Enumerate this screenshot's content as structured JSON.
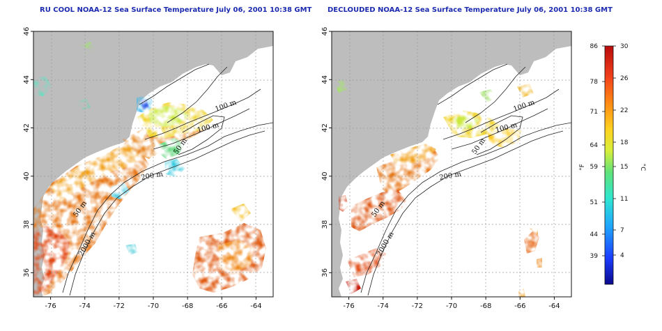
{
  "panels": [
    {
      "id": "rucool",
      "title": "RU COOL NOAA-12 Sea Surface Temperature July 06, 2001 10:38 GMT"
    },
    {
      "id": "declouded",
      "title": "DECLOUDED NOAA-12 Sea Surface Temperature July 06, 2001 10:38 GMT"
    }
  ],
  "axes": {
    "x_ticks": [
      "-76",
      "-74",
      "-72",
      "-70",
      "-68",
      "-66",
      "-64"
    ],
    "y_ticks": [
      "36",
      "38",
      "40",
      "42",
      "44",
      "46"
    ],
    "xlim": [
      -77,
      -63
    ],
    "ylim": [
      35,
      46
    ],
    "grid": true
  },
  "contour_labels": [
    "100 m",
    "100 m",
    "50 m",
    "200 m",
    "50 m",
    "2000 m"
  ],
  "colorbar": {
    "fahrenheit_unit": "°F",
    "celsius_unit": "°C",
    "fahrenheit_ticks": [
      "86",
      "78",
      "71",
      "64",
      "59",
      "51",
      "44",
      "39"
    ],
    "celsius_ticks": [
      "30",
      "26",
      "22",
      "18",
      "15",
      "11",
      "7",
      "4"
    ],
    "colors": [
      "#0a0a8c",
      "#1a3cff",
      "#1fa3ff",
      "#2ee6d0",
      "#5fe37a",
      "#d7ef3b",
      "#ffd21f",
      "#ff8a14",
      "#f2401a",
      "#b80b0b"
    ]
  },
  "colors": {
    "land": "#bdbdbd",
    "ocean": "#ffffff",
    "title": "#1c2bb0",
    "grid": "#9a9a9a"
  }
}
